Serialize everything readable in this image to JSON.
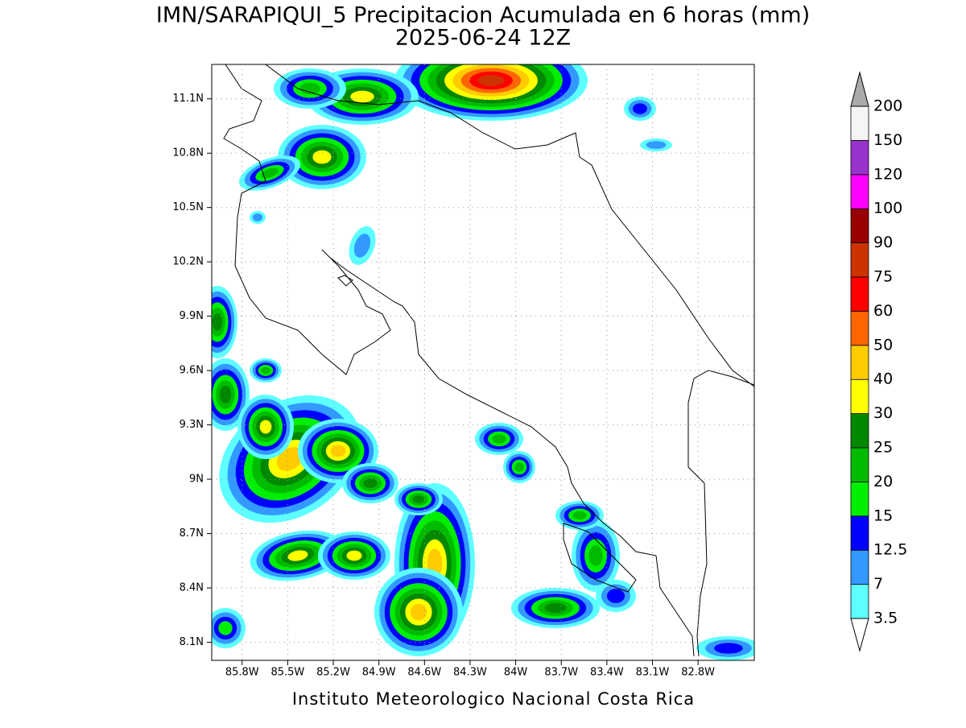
{
  "chart_data": {
    "type": "map",
    "title": "IMN/SARAPIQUI_5 Precipitacion Acumulada en 6 horas (mm)",
    "subtitle": "2025-06-24 12Z",
    "footer": "Instituto Meteorologico Nacional Costa Rica",
    "xlim": [
      -86.0,
      -82.43
    ],
    "ylim": [
      8.0,
      11.29
    ],
    "grid": true,
    "xticks": [
      {
        "value": -85.8,
        "label": "85.8W"
      },
      {
        "value": -85.5,
        "label": "85.5W"
      },
      {
        "value": -85.2,
        "label": "85.2W"
      },
      {
        "value": -84.9,
        "label": "84.9W"
      },
      {
        "value": -84.6,
        "label": "84.6W"
      },
      {
        "value": -84.3,
        "label": "84.3W"
      },
      {
        "value": -84.0,
        "label": "84W"
      },
      {
        "value": -83.7,
        "label": "83.7W"
      },
      {
        "value": -83.4,
        "label": "83.4W"
      },
      {
        "value": -83.1,
        "label": "83.1W"
      },
      {
        "value": -82.8,
        "label": "82.8W"
      }
    ],
    "yticks": [
      {
        "value": 8.1,
        "label": "8.1N"
      },
      {
        "value": 8.4,
        "label": "8.4N"
      },
      {
        "value": 8.7,
        "label": "8.7N"
      },
      {
        "value": 9.0,
        "label": "9N"
      },
      {
        "value": 9.3,
        "label": "9.3N"
      },
      {
        "value": 9.6,
        "label": "9.6N"
      },
      {
        "value": 9.9,
        "label": "9.9N"
      },
      {
        "value": 10.2,
        "label": "10.2N"
      },
      {
        "value": 10.5,
        "label": "10.5N"
      },
      {
        "value": 10.8,
        "label": "10.8N"
      },
      {
        "value": 11.1,
        "label": "11.1N"
      }
    ],
    "colorbar": {
      "levels": [
        3.5,
        7,
        12.5,
        15,
        20,
        25,
        30,
        40,
        50,
        60,
        75,
        90,
        100,
        120,
        150,
        200
      ],
      "colors": [
        "#5effff",
        "#3399ff",
        "#0000ff",
        "#00ee00",
        "#00bb00",
        "#008800",
        "#ffff00",
        "#ffcc00",
        "#ff6600",
        "#ff0000",
        "#cc3300",
        "#990000",
        "#ff00ff",
        "#9933cc",
        "#f5f5f5"
      ],
      "under_color": "#ffffff",
      "over_color": "#aaaaaa"
    }
  }
}
